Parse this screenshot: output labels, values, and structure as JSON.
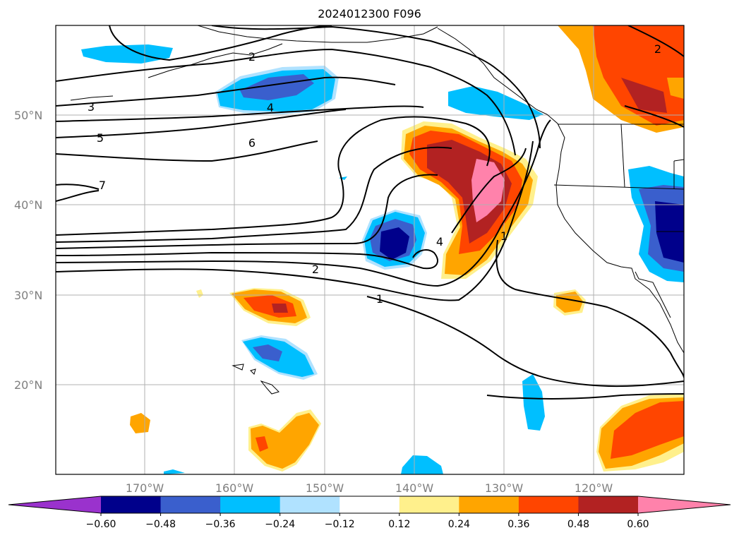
{
  "title": "2024012300 F096",
  "lat_labels": [
    "50°N",
    "40°N",
    "30°N",
    "20°N"
  ],
  "lon_labels": [
    "170°W",
    "160°W",
    "150°W",
    "140°W",
    "130°W",
    "120°W"
  ],
  "contour_labels": [
    "2",
    "3",
    "4",
    "5",
    "6",
    "7",
    "2",
    "1",
    "4",
    "1",
    "2"
  ],
  "colorbar": {
    "ticks": [
      "−0.60",
      "−0.48",
      "−0.36",
      "−0.24",
      "−0.12",
      "0.12",
      "0.24",
      "0.36",
      "0.48",
      "0.60"
    ],
    "colors": [
      "#9a32cd",
      "#00008b",
      "#3a5fcd",
      "#00bfff",
      "#b0e2ff",
      "#ffffff",
      "#fff08c",
      "#ffa500",
      "#ff4500",
      "#b22222",
      "#ff82ab"
    ]
  },
  "colors": {
    "neg_dark": "#00008b",
    "neg_mid": "#3a5fcd",
    "neg_light": "#00bfff",
    "neg_faint": "#b0e2ff",
    "pos_faint": "#fff08c",
    "pos_light": "#ffa500",
    "pos_mid": "#ff4500",
    "pos_dark": "#b22222",
    "pos_max": "#ff82ab"
  }
}
